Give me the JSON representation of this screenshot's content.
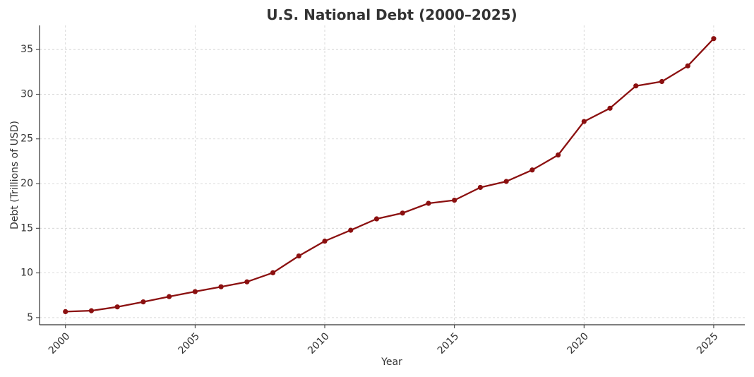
{
  "chart_data": {
    "type": "line",
    "title": "U.S. National Debt (2000–2025)",
    "xlabel": "Year",
    "ylabel": "Debt (Trillions of USD)",
    "xlim": [
      1999,
      2026.2
    ],
    "ylim": [
      4.2,
      37.7
    ],
    "x_ticks": [
      2000,
      2005,
      2010,
      2015,
      2020,
      2025
    ],
    "y_ticks": [
      5,
      10,
      15,
      20,
      25,
      30,
      35
    ],
    "grid": true,
    "line_color": "#8b1010",
    "series": [
      {
        "x": [
          2000,
          2001,
          2002,
          2003,
          2004,
          2005,
          2006,
          2007,
          2008,
          2009,
          2010,
          2011,
          2012,
          2013,
          2014,
          2015,
          2016,
          2017,
          2018,
          2019,
          2020,
          2021,
          2022,
          2023,
          2024,
          2025
        ],
        "values": [
          5.67,
          5.77,
          6.2,
          6.76,
          7.35,
          7.91,
          8.45,
          9.0,
          10.02,
          11.9,
          13.56,
          14.78,
          16.05,
          16.7,
          17.79,
          18.14,
          19.57,
          20.24,
          21.52,
          23.2,
          26.95,
          28.43,
          30.93,
          31.42,
          33.17,
          36.22
        ]
      }
    ]
  }
}
